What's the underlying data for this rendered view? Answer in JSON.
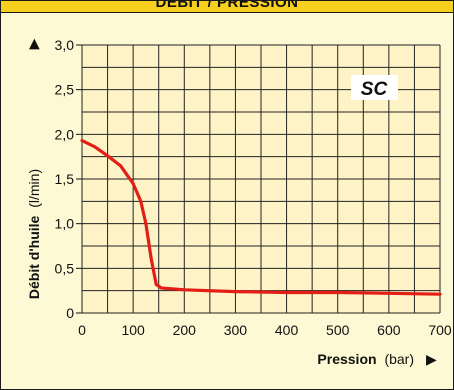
{
  "header": {
    "title": "DÉBIT / PRESSION"
  },
  "chart_data": {
    "type": "line",
    "y_label_bold": "Débit d'huile",
    "y_label_unit": "(l/min)",
    "x_label_bold": "Pression",
    "x_label_unit": "(bar)",
    "axis_arrow_icon": "▶",
    "x_ticks": [
      "0",
      "100",
      "200",
      "300",
      "400",
      "500",
      "600",
      "700"
    ],
    "y_ticks": [
      "0",
      "0,5",
      "1,0",
      "1,5",
      "2,0",
      "2,5",
      "3,0"
    ],
    "xlim": [
      0,
      700
    ],
    "ylim": [
      0,
      3.0
    ],
    "grid": true,
    "x_grid_step": 50,
    "y_grid_step": 0.25,
    "series_label": "SC",
    "series": [
      {
        "name": "SC",
        "color": "#e31e16",
        "x": [
          0,
          25,
          50,
          75,
          100,
          115,
          125,
          135,
          145,
          155,
          200,
          300,
          400,
          500,
          600,
          700
        ],
        "y": [
          1.93,
          1.86,
          1.76,
          1.65,
          1.45,
          1.25,
          1.0,
          0.62,
          0.32,
          0.28,
          0.26,
          0.24,
          0.23,
          0.23,
          0.22,
          0.21
        ]
      }
    ],
    "colors": {
      "background": "#fdf9d4",
      "header": "#f6cf1f",
      "grid": "#222222"
    }
  }
}
